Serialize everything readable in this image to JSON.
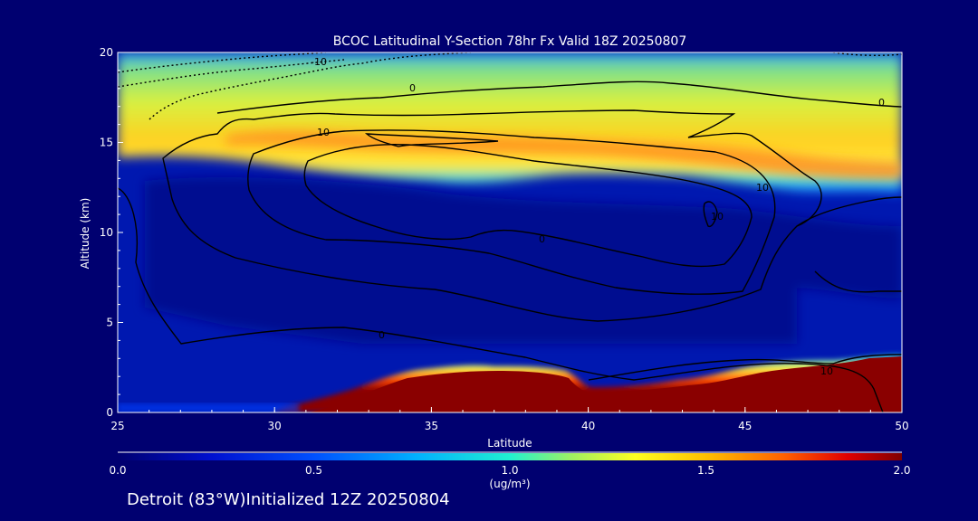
{
  "chart_data": {
    "type": "heatmap",
    "title": "BCOC Latitudinal Y-Section 78hr  Fx Valid 18Z 20250807",
    "xlabel": "Latitude",
    "ylabel": "Altitude (km)",
    "xlim": [
      25,
      50
    ],
    "ylim": [
      0,
      20
    ],
    "x_ticks": [
      "25",
      "30",
      "35",
      "40",
      "45",
      "50"
    ],
    "y_ticks": [
      "0",
      "5",
      "10",
      "15",
      "20"
    ],
    "colorbar": {
      "min": 0.0,
      "max": 2.0,
      "ticks": [
        "0.0",
        "0.5",
        "1.0",
        "1.5",
        "2.0"
      ],
      "label": "(ug/m³)"
    },
    "contour_labels": [
      "-10",
      "0",
      "0",
      "10",
      "10",
      "10",
      "0",
      "0",
      "10"
    ],
    "footer": "Detroit (83°W)Initialized 12Z 20250804"
  }
}
